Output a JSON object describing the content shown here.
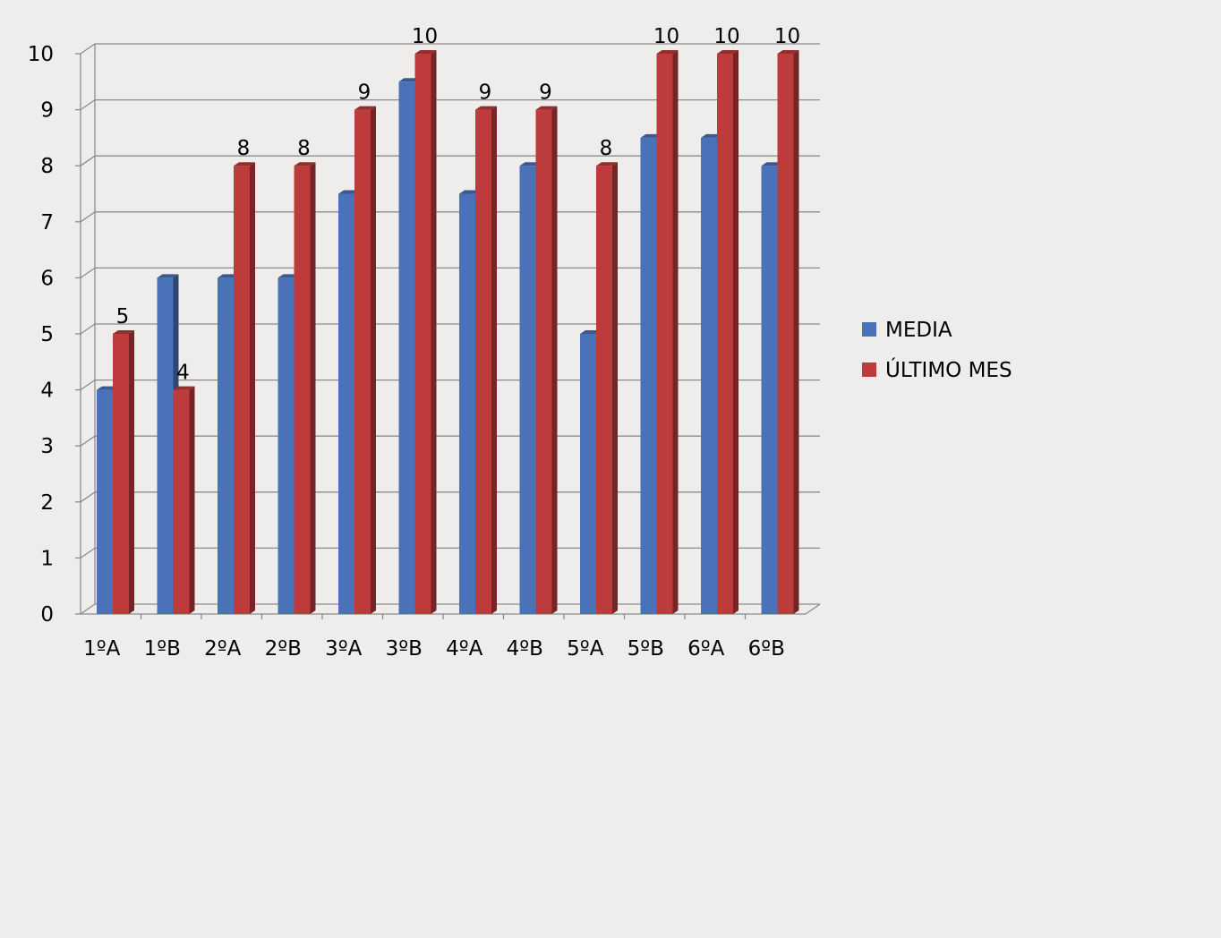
{
  "chart_data": {
    "type": "bar",
    "title": "",
    "xlabel": "",
    "ylabel": "",
    "ylim": [
      0,
      10
    ],
    "yticks": [
      0,
      1,
      2,
      3,
      4,
      5,
      6,
      7,
      8,
      9,
      10
    ],
    "grid": true,
    "legend_position": "right",
    "categories": [
      "1ºA",
      "1ºB",
      "2ºA",
      "2ºB",
      "3ºA",
      "3ºB",
      "4ºA",
      "4ºB",
      "5ºA",
      "5ºB",
      "6ºA",
      "6ºB"
    ],
    "series": [
      {
        "name": "MEDIA",
        "color": "#4a72b8",
        "values": [
          4,
          6,
          6,
          6,
          7.5,
          9.5,
          7.5,
          8,
          5,
          8.5,
          8.5,
          8
        ],
        "show_data_labels": false
      },
      {
        "name": "ÚLTIMO MES",
        "color": "#bd3b3b",
        "values": [
          5,
          4,
          8,
          8,
          9,
          10,
          9,
          9,
          8,
          10,
          10,
          10
        ],
        "show_data_labels": true
      }
    ]
  }
}
